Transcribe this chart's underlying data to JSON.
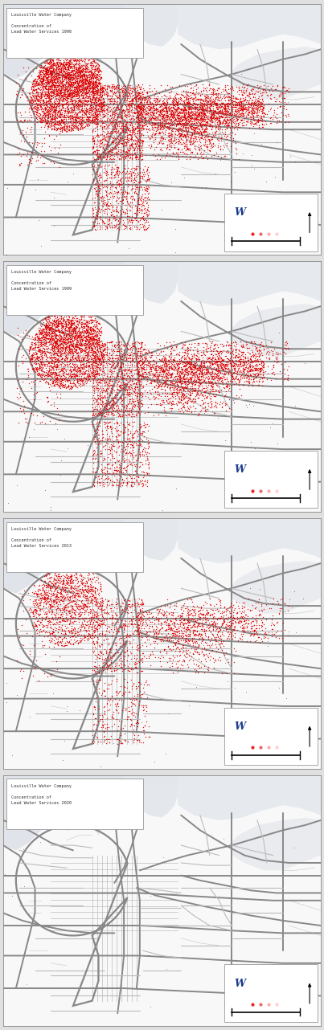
{
  "panels": [
    {
      "title": "Louisville Water Company\n\nConcentration of\nLead Water Services 1990",
      "year": 1990,
      "n_red_dots": 9000,
      "dot_scale": 1.0
    },
    {
      "title": "Louisville Water Company\n\nConcentration of\nLead Water Services 1999",
      "year": 1999,
      "n_red_dots": 7000,
      "dot_scale": 0.85
    },
    {
      "title": "Louisville Water Company\n\nConcentration of\nLead Water Services 2013",
      "year": 2013,
      "n_red_dots": 3500,
      "dot_scale": 0.65
    },
    {
      "title": "Louisville Water Company\n\nConcentration of\nLead Water Services 2020",
      "year": 2020,
      "n_red_dots": 0,
      "dot_scale": 0.0
    }
  ],
  "bg_color": "#e0e0e0",
  "map_bg": "#f2f2f2",
  "map_bg_light": "#f8f8f8",
  "road_color_major": "#888888",
  "road_color_minor": "#bbbbbb",
  "road_color_tiny": "#d0d0d0",
  "red_dot_color": "#dd0000",
  "black_dot_color": "#222222",
  "water_color": "#c5d5e5",
  "terrain_color": "#d8dde4",
  "title_box_color": "#ffffff",
  "legend_box_color": "#ffffff"
}
